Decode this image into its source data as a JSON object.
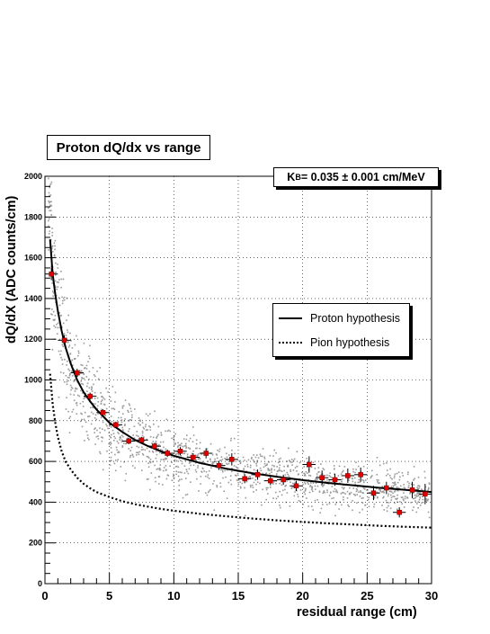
{
  "title": "Proton dQ/dx vs range",
  "annotation": {
    "main": "K",
    "sub": "B",
    "text": " =  0.035 ±  0.001 cm/MeV"
  },
  "legend": [
    {
      "label": "Proton hypothesis",
      "style": "solid"
    },
    {
      "label": "Pion hypothesis",
      "style": "dotted"
    }
  ],
  "chart_data": {
    "type": "scatter",
    "title": "Proton dQ/dx vs range",
    "xlabel": "residual range (cm)",
    "ylabel": "dQ/dX (ADC counts/cm)",
    "xlim": [
      0,
      30
    ],
    "ylim": [
      0,
      2000
    ],
    "xticks": [
      0,
      5,
      10,
      15,
      20,
      25,
      30
    ],
    "yticks": [
      0,
      200,
      400,
      600,
      800,
      1000,
      1200,
      1400,
      1600,
      1800,
      2000
    ],
    "grid": true,
    "legend_position": "right",
    "colors": {
      "points": "#e00000",
      "scatter": "#9a9a9a",
      "curve": "#000000"
    },
    "series": [
      {
        "name": "Proton hypothesis",
        "style": "solid",
        "x": [
          0.4,
          0.6,
          0.8,
          1.0,
          1.3,
          1.6,
          2.0,
          2.5,
          3.0,
          3.5,
          4.0,
          5.0,
          6.0,
          7.0,
          8.0,
          9.0,
          10.0,
          12.0,
          14.0,
          16.0,
          18.0,
          20.0,
          22.0,
          24.0,
          26.0,
          28.0,
          30.0
        ],
        "y": [
          1690,
          1520,
          1420,
          1340,
          1240,
          1160,
          1080,
          1000,
          940,
          895,
          855,
          790,
          745,
          705,
          675,
          650,
          628,
          593,
          565,
          543,
          525,
          508,
          494,
          482,
          470,
          460,
          450
        ]
      },
      {
        "name": "Pion hypothesis",
        "style": "dotted",
        "x": [
          0.4,
          0.6,
          0.8,
          1.0,
          1.3,
          1.6,
          2.0,
          2.5,
          3.0,
          3.5,
          4.0,
          5.0,
          6.0,
          7.0,
          8.0,
          9.0,
          10.0,
          12.0,
          14.0,
          16.0,
          18.0,
          20.0,
          22.0,
          24.0,
          26.0,
          28.0,
          30.0
        ],
        "y": [
          1030,
          880,
          790,
          720,
          650,
          600,
          560,
          520,
          490,
          468,
          450,
          425,
          405,
          390,
          378,
          367,
          358,
          343,
          331,
          320,
          311,
          303,
          296,
          290,
          284,
          279,
          275
        ]
      }
    ],
    "points": {
      "x": [
        0.5,
        1.5,
        2.5,
        3.5,
        4.5,
        5.5,
        6.5,
        7.5,
        8.5,
        9.5,
        10.5,
        11.5,
        12.5,
        13.5,
        14.5,
        15.5,
        16.5,
        17.5,
        18.5,
        19.5,
        20.5,
        21.5,
        22.5,
        23.5,
        24.5,
        25.5,
        26.5,
        27.5,
        28.5,
        29.5
      ],
      "y": [
        1520,
        1195,
        1035,
        920,
        840,
        780,
        700,
        705,
        675,
        640,
        650,
        620,
        640,
        580,
        610,
        515,
        535,
        505,
        510,
        480,
        585,
        520,
        510,
        530,
        535,
        445,
        470,
        350,
        460,
        440
      ],
      "yerr": [
        30,
        25,
        20,
        18,
        16,
        15,
        15,
        15,
        15,
        18,
        20,
        20,
        25,
        22,
        30,
        22,
        25,
        22,
        25,
        25,
        40,
        35,
        30,
        35,
        35,
        35,
        30,
        25,
        40,
        50
      ]
    }
  }
}
